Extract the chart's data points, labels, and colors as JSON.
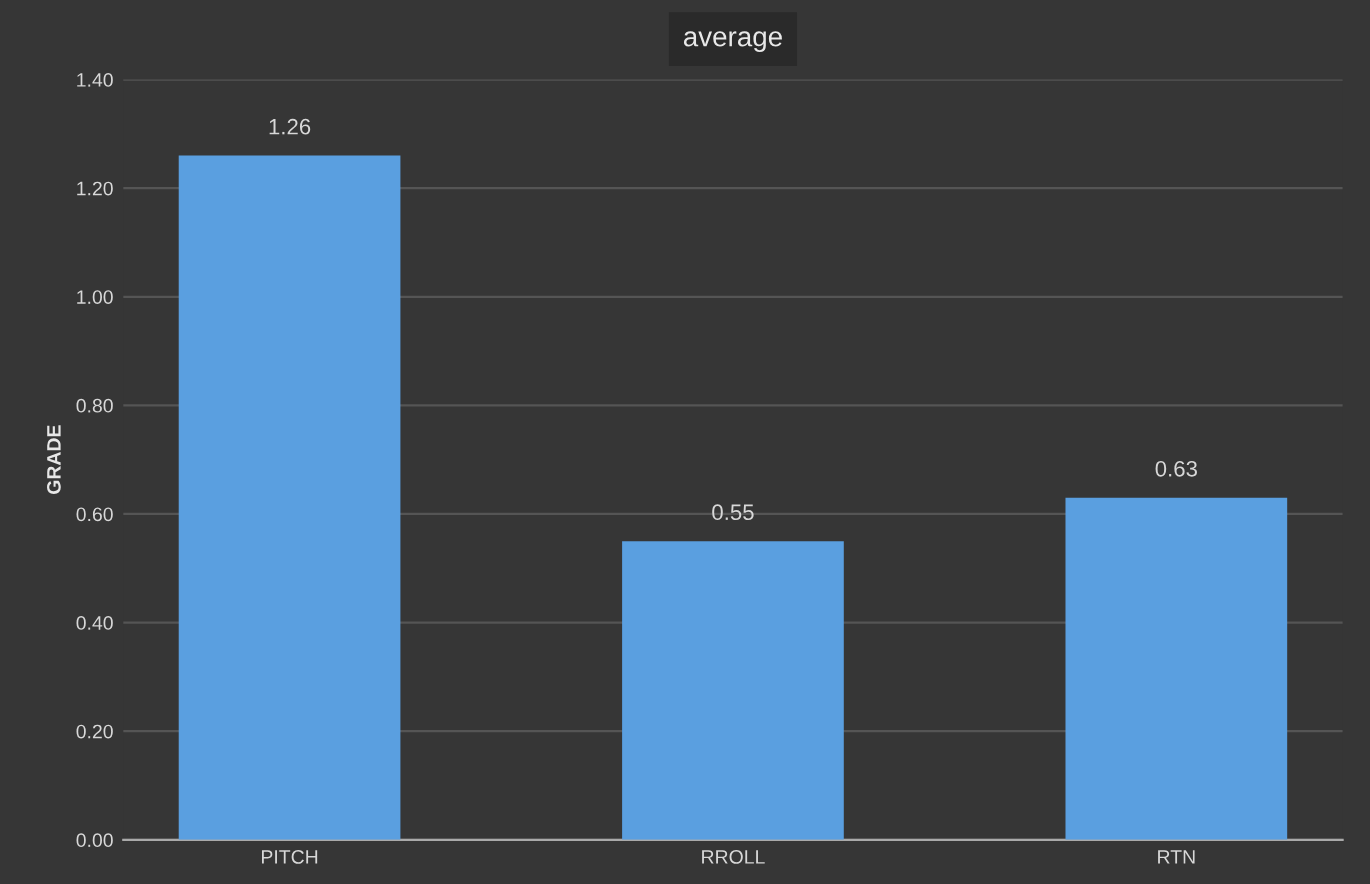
{
  "chart_data": {
    "type": "bar",
    "title": "average",
    "ylabel": "GRADE",
    "categories": [
      "PITCH",
      "RROLL",
      "RTN"
    ],
    "values": [
      1.26,
      0.55,
      0.63
    ],
    "color": "#5a9fe0",
    "ylim": [
      0,
      1.4
    ],
    "yticks": [
      {
        "value": 0,
        "label": "0.00"
      },
      {
        "value": 0.2,
        "label": "0.20"
      },
      {
        "value": 0.4,
        "label": "0.40"
      },
      {
        "value": 0.6,
        "label": "0.60"
      },
      {
        "value": 0.8,
        "label": "0.80"
      },
      {
        "value": 1.0,
        "label": "1.00"
      },
      {
        "value": 1.2,
        "label": "1.20"
      },
      {
        "value": 1.4,
        "label": "1.40"
      }
    ],
    "grid": "y",
    "data_labels": true,
    "legend": false
  }
}
